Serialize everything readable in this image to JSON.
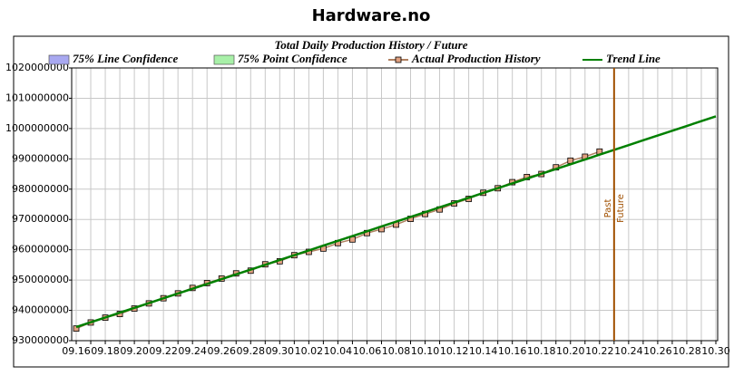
{
  "chart_data": {
    "type": "line",
    "title": "Hardware.no",
    "subtitle": "Total Daily Production History / Future",
    "categories": [
      "09.16",
      null,
      "09.18",
      null,
      "09.20",
      null,
      "09.22",
      null,
      "09.24",
      null,
      "09.26",
      null,
      "09.28",
      null,
      "09.30",
      null,
      "10.02",
      null,
      "10.04",
      null,
      "10.06",
      null,
      "10.08",
      null,
      "10.10",
      null,
      "10.12",
      null,
      "10.14",
      null,
      "10.16",
      null,
      "10.18",
      null,
      "10.20",
      null,
      "10.22",
      null,
      "10.24",
      null,
      "10.26",
      null,
      "10.28",
      null,
      "10.30"
    ],
    "series": [
      {
        "name": "75% Line Confidence",
        "color": "#a8a8f0"
      },
      {
        "name": "75% Point Confidence",
        "color": "#a8f0a8"
      },
      {
        "name": "Actual Production History",
        "color": "#b08060",
        "marker_color": "#e0a080",
        "values": [
          934000000,
          936000000,
          937600000,
          938800000,
          940600000,
          942300000,
          944000000,
          945600000,
          947400000,
          949000000,
          950500000,
          952200000,
          953100000,
          955200000,
          956200000,
          958200000,
          959300000,
          960400000,
          962200000,
          963400000,
          965500000,
          966800000,
          968300000,
          970200000,
          971800000,
          973300000,
          975300000,
          976800000,
          978800000,
          980300000,
          982300000,
          984000000,
          985000000,
          987200000,
          989400000,
          990700000,
          992400000,
          null,
          null,
          null,
          null,
          null,
          null,
          null,
          null
        ]
      },
      {
        "name": "Trend Line",
        "color": "#008000",
        "values": [
          934500000,
          936080000,
          937660000,
          939240000,
          940820000,
          942400000,
          943980000,
          945560000,
          947140000,
          948720000,
          950300000,
          951880000,
          953460000,
          955040000,
          956620000,
          958200000,
          959780000,
          961360000,
          962940000,
          964520000,
          966100000,
          967680000,
          969260000,
          970840000,
          972420000,
          974000000,
          975580000,
          977160000,
          978740000,
          980320000,
          981900000,
          983480000,
          985060000,
          986640000,
          988220000,
          989800000,
          991380000,
          992960000,
          994540000,
          996120000,
          997700000,
          999280000,
          1000860000,
          1002440000,
          1004020000
        ]
      }
    ],
    "divider": {
      "at": 37,
      "color": "#a05000",
      "labels": [
        "Past",
        "Future"
      ]
    },
    "ylim": [
      930000000,
      1020000000
    ],
    "yticks": [
      930000000,
      940000000,
      950000000,
      960000000,
      970000000,
      980000000,
      990000000,
      1000000000,
      1010000000,
      1020000000
    ],
    "grid": true
  }
}
